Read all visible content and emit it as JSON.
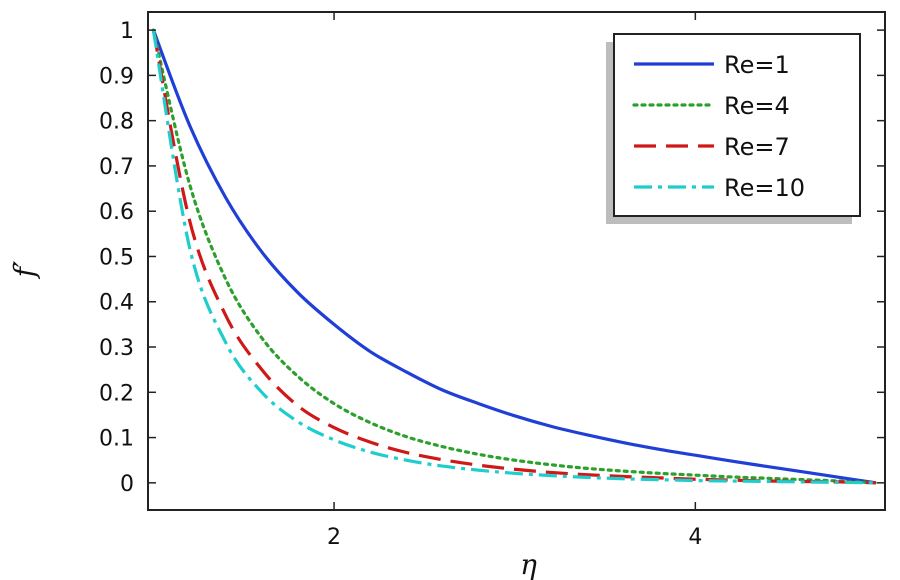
{
  "chart_data": {
    "type": "line",
    "title": "",
    "xlabel": "η",
    "ylabel": "f′",
    "xlim": [
      0.97,
      5.05
    ],
    "ylim": [
      -0.06,
      1.04
    ],
    "xticks": [
      2,
      4
    ],
    "xtick_labels": [
      "2",
      "4"
    ],
    "yticks": [
      0,
      0.1,
      0.2,
      0.3,
      0.4,
      0.5,
      0.6,
      0.7,
      0.8,
      0.9,
      1
    ],
    "ytick_labels": [
      "0",
      "0.1",
      "0.2",
      "0.3",
      "0.4",
      "0.5",
      "0.6",
      "0.7",
      "0.8",
      "0.9",
      "1"
    ],
    "grid": false,
    "legend_position": "top-right",
    "x": [
      1.0,
      1.2,
      1.4,
      1.6,
      1.8,
      2.0,
      2.2,
      2.4,
      2.6,
      2.8,
      3.0,
      3.2,
      3.4,
      3.6,
      3.8,
      4.0,
      4.2,
      4.4,
      4.6,
      4.8,
      5.0
    ],
    "series": [
      {
        "name": "Re=1",
        "color": "#1f3fd6",
        "dash": "solid",
        "values": [
          1.0,
          0.79,
          0.63,
          0.51,
          0.42,
          0.35,
          0.29,
          0.245,
          0.205,
          0.175,
          0.148,
          0.125,
          0.106,
          0.089,
          0.074,
          0.061,
          0.048,
          0.036,
          0.024,
          0.012,
          0.0
        ]
      },
      {
        "name": "Re=4",
        "color": "#2ca02c",
        "dash": "dotted",
        "values": [
          1.0,
          0.66,
          0.45,
          0.32,
          0.235,
          0.175,
          0.133,
          0.102,
          0.08,
          0.063,
          0.05,
          0.04,
          0.032,
          0.026,
          0.021,
          0.017,
          0.013,
          0.01,
          0.007,
          0.004,
          0.0
        ]
      },
      {
        "name": "Re=7",
        "color": "#d01818",
        "dash": "dashed",
        "values": [
          1.0,
          0.58,
          0.37,
          0.25,
          0.17,
          0.122,
          0.09,
          0.067,
          0.051,
          0.039,
          0.03,
          0.023,
          0.018,
          0.014,
          0.011,
          0.008,
          0.006,
          0.004,
          0.003,
          0.002,
          0.0
        ]
      },
      {
        "name": "Re=10",
        "color": "#1fcdcd",
        "dash": "dashdot",
        "values": [
          1.0,
          0.52,
          0.31,
          0.2,
          0.135,
          0.095,
          0.068,
          0.05,
          0.037,
          0.028,
          0.021,
          0.016,
          0.012,
          0.009,
          0.007,
          0.005,
          0.004,
          0.003,
          0.002,
          0.001,
          0.0
        ]
      }
    ]
  }
}
